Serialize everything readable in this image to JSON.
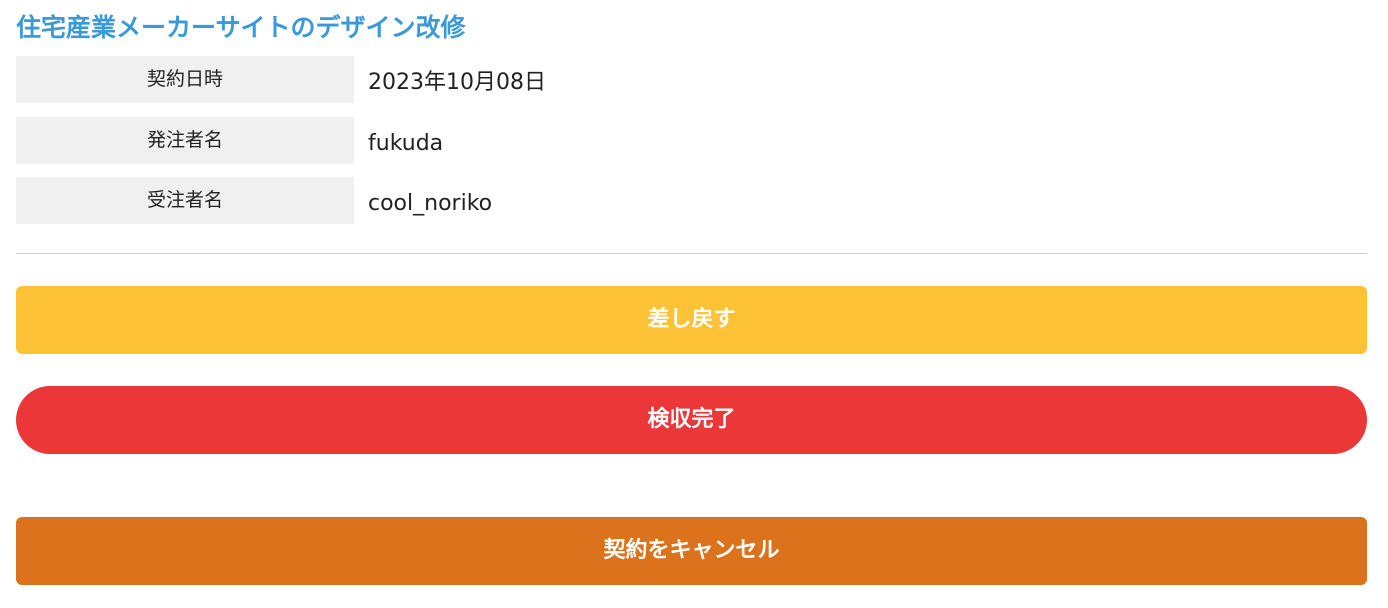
{
  "title": "住宅産業メーカーサイトのデザイン改修",
  "fields": [
    {
      "label": "契約日時",
      "value": "2023年10月08日"
    },
    {
      "label": "発注者名",
      "value": "fukuda"
    },
    {
      "label": "受注者名",
      "value": "cool_noriko"
    }
  ],
  "buttons": {
    "return": "差し戻す",
    "complete": "検収完了",
    "cancel": "契約をキャンセル"
  },
  "colors": {
    "title": "#3a9ad9",
    "return": "#fec236",
    "complete": "#eb3737",
    "cancel": "#dc731c"
  }
}
